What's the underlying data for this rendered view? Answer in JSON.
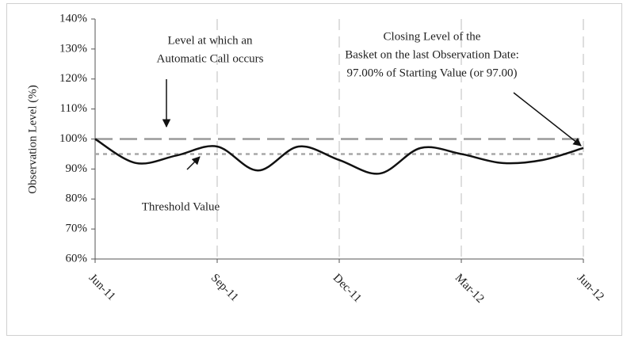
{
  "chart_data": {
    "type": "line",
    "y_label": "Observation Level (%)",
    "categories": [
      "Jun-11",
      null,
      null,
      "Sep-11",
      null,
      null,
      "Dec-11",
      null,
      null,
      "Mar-12",
      null,
      null,
      "Jun-12"
    ],
    "series": [
      {
        "color": "#111111",
        "values": [
          100,
          92,
          94.5,
          97.5,
          89.5,
          97.5,
          93,
          88.5,
          97,
          95,
          92,
          93,
          97
        ]
      }
    ],
    "ylim": [
      60,
      140
    ],
    "yticks": [
      {
        "value": 60,
        "label": "60%"
      },
      {
        "value": 70,
        "label": "70%"
      },
      {
        "value": 80,
        "label": "80%"
      },
      {
        "value": 90,
        "label": "90%"
      },
      {
        "value": 100,
        "label": "100%"
      },
      {
        "value": 110,
        "label": "110%"
      },
      {
        "value": 120,
        "label": "120%"
      },
      {
        "value": 130,
        "label": "130%"
      },
      {
        "value": 140,
        "label": "140%"
      }
    ],
    "grid": "x",
    "reference_lines": [
      {
        "value": 100,
        "color": "#9a9a9a",
        "dash": "long"
      },
      {
        "value": 95,
        "color": "#a8a8a8",
        "dash": "dot"
      }
    ],
    "annotations": [
      {
        "lines": [
          "Level at which an",
          "Automatic Call occurs"
        ]
      },
      {
        "lines": [
          "Threshold Value"
        ]
      },
      {
        "lines": [
          "Closing Level of the",
          "Basket on the last Observation Date:",
          "97.00% of Starting Value (or 97.00)"
        ]
      }
    ]
  }
}
